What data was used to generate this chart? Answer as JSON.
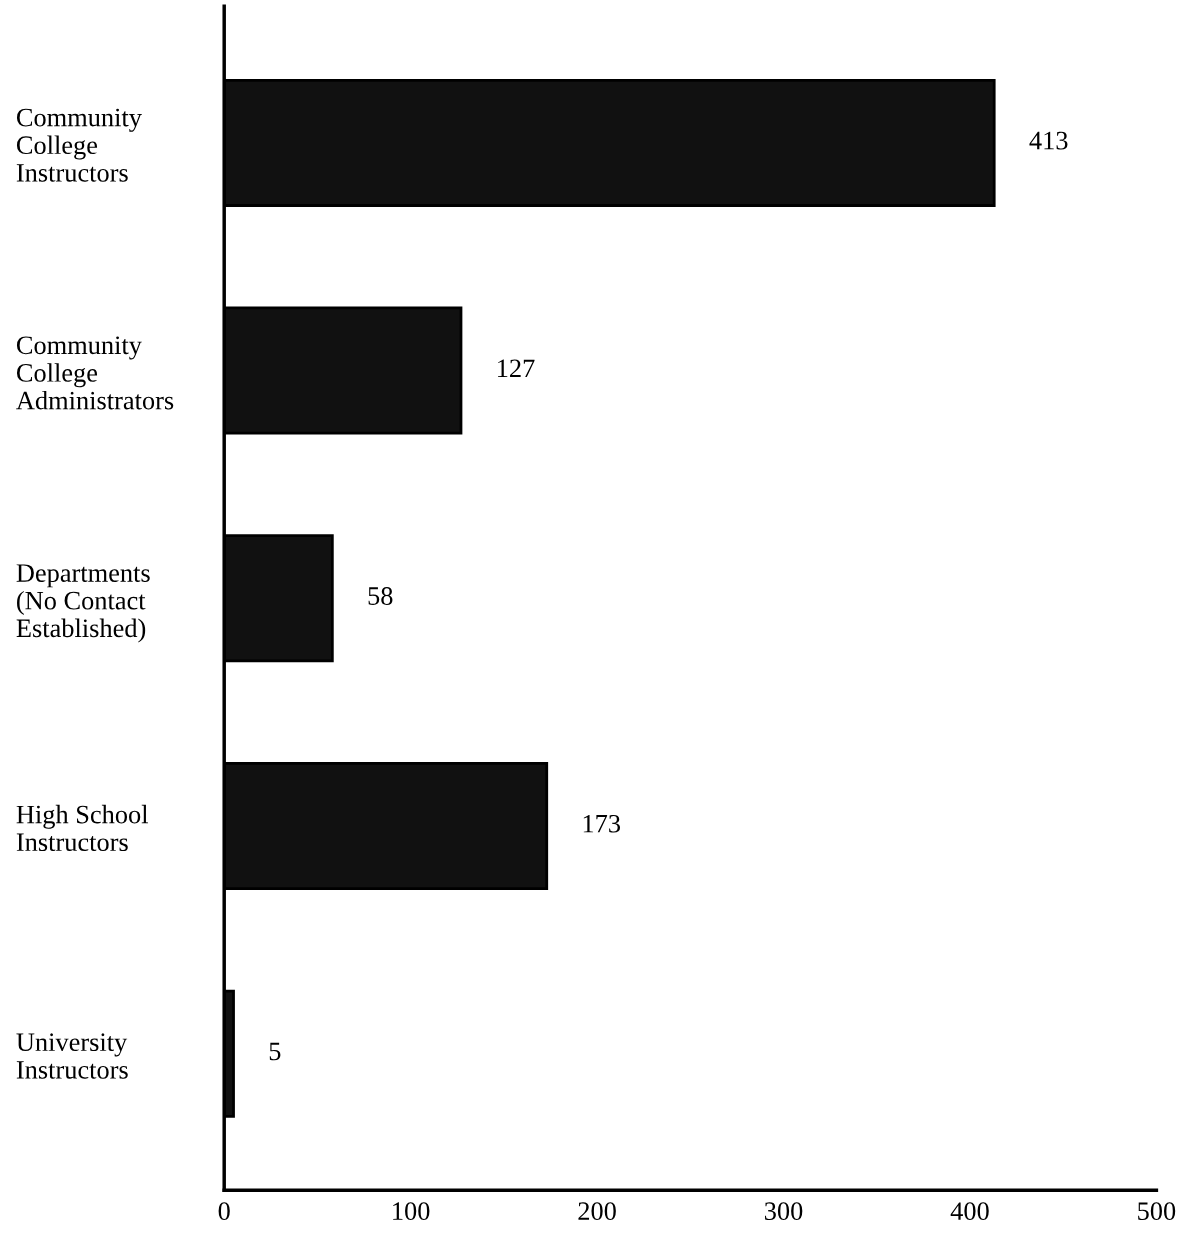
{
  "chart_data": {
    "type": "bar",
    "orientation": "horizontal",
    "categories": [
      "Community\nCollege\nInstructors",
      "Community\nCollege\nAdministrators",
      "Departments\n(No Contact\nEstablished)",
      "High School\nInstructors",
      "University\nInstructors"
    ],
    "values": [
      413,
      127,
      58,
      173,
      5
    ],
    "color": "#111111",
    "data_labels": true,
    "xlim": [
      0,
      500
    ],
    "xticks": [
      0,
      100,
      200,
      300,
      400,
      500
    ],
    "grid": false,
    "legend": false
  }
}
